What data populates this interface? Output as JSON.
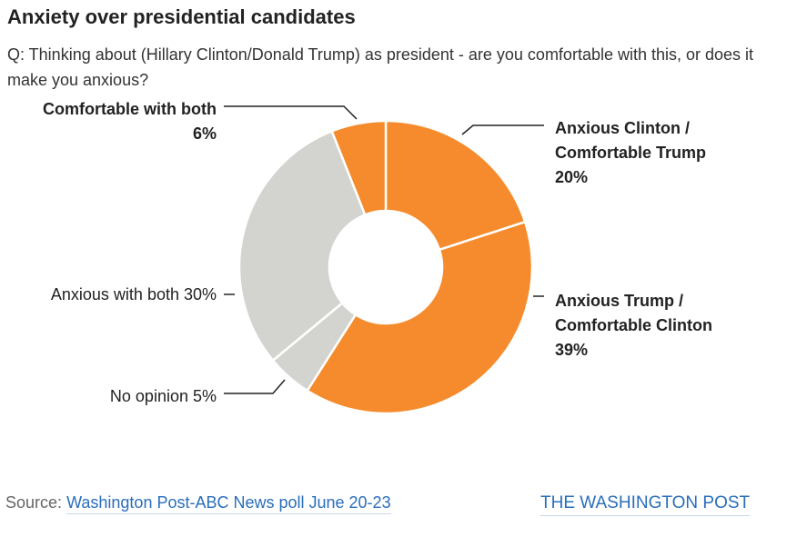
{
  "header": {
    "title": "Anxiety over presidential candidates",
    "subtitle": "Q: Thinking about (Hillary Clinton/Donald Trump) as president - are you comfortable with this, or does it make you anxious?"
  },
  "footer": {
    "source_label": "Source:",
    "source_link": "Washington Post-ABC News poll June 20-23",
    "brand": "THE WASHINGTON POST"
  },
  "chart_data": {
    "type": "pie",
    "title": "Anxiety over presidential candidates",
    "donut": true,
    "unit": "%",
    "slices": [
      {
        "label": "Anxious Clinton / Comfortable Trump",
        "label_lines": [
          "Anxious Clinton /",
          "Comfortable Trump",
          "20%"
        ],
        "value": 20,
        "color": "#f58b2c",
        "bold": true
      },
      {
        "label": "Anxious Trump / Comfortable Clinton",
        "label_lines": [
          "Anxious Trump /",
          "Comfortable Clinton",
          "39%"
        ],
        "value": 39,
        "color": "#f58b2c",
        "bold": true
      },
      {
        "label": "No opinion",
        "label_lines": [
          "No opinion 5%"
        ],
        "value": 5,
        "color": "#d3d3cf",
        "bold": false
      },
      {
        "label": "Anxious with both",
        "label_lines": [
          "Anxious with both 30%"
        ],
        "value": 30,
        "color": "#d3d3cf",
        "bold": false
      },
      {
        "label": "Comfortable with both",
        "label_lines": [
          "Comfortable with both",
          "6%"
        ],
        "value": 6,
        "color": "#f58b2c",
        "bold": true
      }
    ]
  }
}
